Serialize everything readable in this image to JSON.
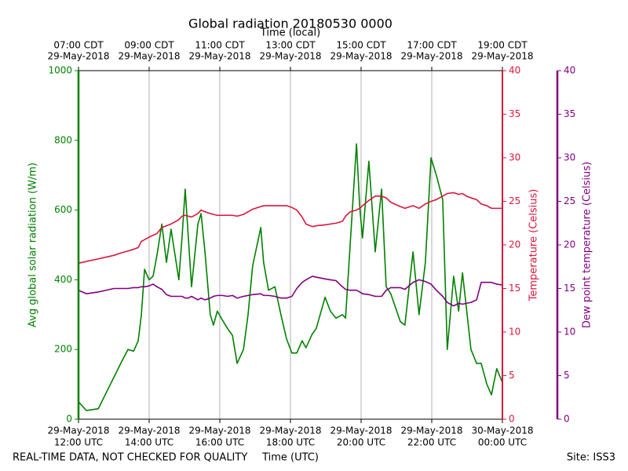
{
  "chart_data": {
    "type": "line",
    "title": "Global radiation 20180530 0000",
    "xlabel": "Time (UTC)",
    "x2label": "Time (local)",
    "ylabel": "Avg global solar radiation (W/m)",
    "y2label": "Temperature (Celsius)",
    "y3label": "Dew point temperature (Celsius)",
    "note": "REAL-TIME DATA, NOT CHECKED FOR QUALITY",
    "site": "Site: ISS3",
    "grid": "x",
    "xlim": [
      12,
      24
    ],
    "xticks": [
      {
        "value": 12,
        "label": [
          "29-May-2018",
          "12:00 UTC"
        ]
      },
      {
        "value": 14,
        "label": [
          "29-May-2018",
          "14:00 UTC"
        ]
      },
      {
        "value": 16,
        "label": [
          "29-May-2018",
          "16:00 UTC"
        ]
      },
      {
        "value": 18,
        "label": [
          "29-May-2018",
          "18:00 UTC"
        ]
      },
      {
        "value": 20,
        "label": [
          "29-May-2018",
          "20:00 UTC"
        ]
      },
      {
        "value": 22,
        "label": [
          "29-May-2018",
          "22:00 UTC"
        ]
      },
      {
        "value": 24,
        "label": [
          "30-May-2018",
          "00:00 UTC"
        ]
      }
    ],
    "x2ticks": [
      {
        "value": 12,
        "label": [
          "07:00 CDT",
          "29-May-2018"
        ]
      },
      {
        "value": 14,
        "label": [
          "09:00 CDT",
          "29-May-2018"
        ]
      },
      {
        "value": 16,
        "label": [
          "11:00 CDT",
          "29-May-2018"
        ]
      },
      {
        "value": 18,
        "label": [
          "13:00 CDT",
          "29-May-2018"
        ]
      },
      {
        "value": 20,
        "label": [
          "15:00 CDT",
          "29-May-2018"
        ]
      },
      {
        "value": 22,
        "label": [
          "17:00 CDT",
          "29-May-2018"
        ]
      },
      {
        "value": 24,
        "label": [
          "19:00 CDT",
          "29-May-2018"
        ]
      }
    ],
    "ylim": [
      0,
      1000
    ],
    "yticks": [
      0,
      200,
      400,
      600,
      800,
      1000
    ],
    "y2lim": [
      0,
      40
    ],
    "y2ticks": [
      0,
      5,
      10,
      15,
      20,
      25,
      30,
      35,
      40
    ],
    "y3lim": [
      0,
      40
    ],
    "y3ticks": [
      0,
      5,
      10,
      15,
      20,
      25,
      30,
      35,
      40
    ],
    "x": [
      12.0,
      12.22,
      12.56,
      12.78,
      13.0,
      13.22,
      13.4,
      13.56,
      13.69,
      13.78,
      13.87,
      14.0,
      14.11,
      14.22,
      14.36,
      14.49,
      14.62,
      14.84,
      14.93,
      15.02,
      15.11,
      15.2,
      15.38,
      15.47,
      15.58,
      15.73,
      15.82,
      15.93,
      16.07,
      16.22,
      16.36,
      16.49,
      16.67,
      16.8,
      16.93,
      17.16,
      17.24,
      17.38,
      17.56,
      17.73,
      17.89,
      18.04,
      18.18,
      18.33,
      18.44,
      18.62,
      18.73,
      18.98,
      19.13,
      19.29,
      19.47,
      19.56,
      19.69,
      19.87,
      19.96,
      20.04,
      20.22,
      20.4,
      20.58,
      20.71,
      20.84,
      21.11,
      21.24,
      21.47,
      21.64,
      21.82,
      21.98,
      22.13,
      22.31,
      22.44,
      22.62,
      22.76,
      22.87,
      22.98,
      23.11,
      23.27,
      23.4,
      23.56,
      23.69,
      23.84,
      24.0
    ],
    "series": [
      {
        "color": "green",
        "axis": "y",
        "values": [
          50,
          25,
          30,
          75,
          120,
          165,
          200,
          195,
          225,
          300,
          430,
          400,
          410,
          470,
          560,
          450,
          545,
          400,
          520,
          660,
          520,
          380,
          560,
          590,
          480,
          300,
          270,
          310,
          285,
          260,
          240,
          160,
          200,
          300,
          440,
          550,
          450,
          370,
          380,
          300,
          230,
          190,
          190,
          225,
          205,
          245,
          260,
          350,
          310,
          290,
          300,
          290,
          500,
          790,
          610,
          520,
          740,
          480,
          660,
          380,
          360,
          280,
          270,
          480,
          300,
          450,
          750,
          700,
          630,
          200,
          410,
          310,
          420,
          320,
          200,
          160,
          160,
          100,
          70,
          145,
          105
        ]
      },
      {
        "color": "crimson",
        "axis": "y2",
        "values": [
          17.9,
          18.1,
          18.4,
          18.6,
          18.8,
          19.1,
          19.3,
          19.5,
          19.7,
          20.4,
          20.6,
          20.9,
          21.1,
          21.3,
          22.0,
          22.2,
          22.4,
          22.9,
          23.3,
          23.4,
          23.3,
          23.2,
          23.6,
          24.0,
          23.8,
          23.6,
          23.5,
          23.4,
          23.4,
          23.4,
          23.4,
          23.3,
          23.5,
          23.8,
          24.1,
          24.4,
          24.5,
          24.5,
          24.5,
          24.5,
          24.5,
          24.3,
          24.0,
          23.2,
          22.4,
          22.1,
          22.2,
          22.3,
          22.4,
          22.5,
          22.7,
          23.3,
          23.8,
          24.0,
          24.2,
          24.5,
          25.1,
          25.6,
          25.6,
          25.4,
          24.9,
          24.4,
          24.2,
          24.5,
          24.2,
          24.7,
          25.0,
          25.2,
          25.6,
          25.9,
          26.0,
          25.8,
          25.9,
          25.6,
          25.4,
          25.2,
          24.7,
          24.5,
          24.2,
          24.2,
          24.2
        ]
      },
      {
        "color": "purple",
        "axis": "y3",
        "values": [
          14.8,
          14.4,
          14.6,
          14.8,
          15.0,
          15.0,
          15.0,
          15.1,
          15.1,
          15.2,
          15.2,
          15.3,
          15.5,
          15.2,
          14.9,
          14.3,
          14.1,
          14.1,
          14.1,
          13.9,
          13.9,
          14.1,
          13.7,
          13.9,
          13.7,
          13.9,
          14.1,
          14.2,
          14.2,
          14.1,
          14.2,
          13.9,
          14.1,
          14.2,
          14.3,
          14.4,
          14.2,
          14.2,
          14.1,
          13.9,
          13.9,
          14.1,
          15.0,
          15.7,
          16.0,
          16.4,
          16.3,
          16.1,
          16.0,
          15.9,
          15.2,
          14.9,
          14.8,
          14.8,
          14.6,
          14.4,
          14.3,
          14.1,
          14.1,
          14.8,
          15.1,
          15.1,
          14.9,
          15.7,
          16.0,
          15.8,
          15.5,
          14.8,
          14.1,
          13.4,
          13.0,
          13.3,
          13.2,
          13.3,
          13.4,
          13.7,
          15.7,
          15.7,
          15.7,
          15.5,
          15.4
        ]
      }
    ]
  }
}
